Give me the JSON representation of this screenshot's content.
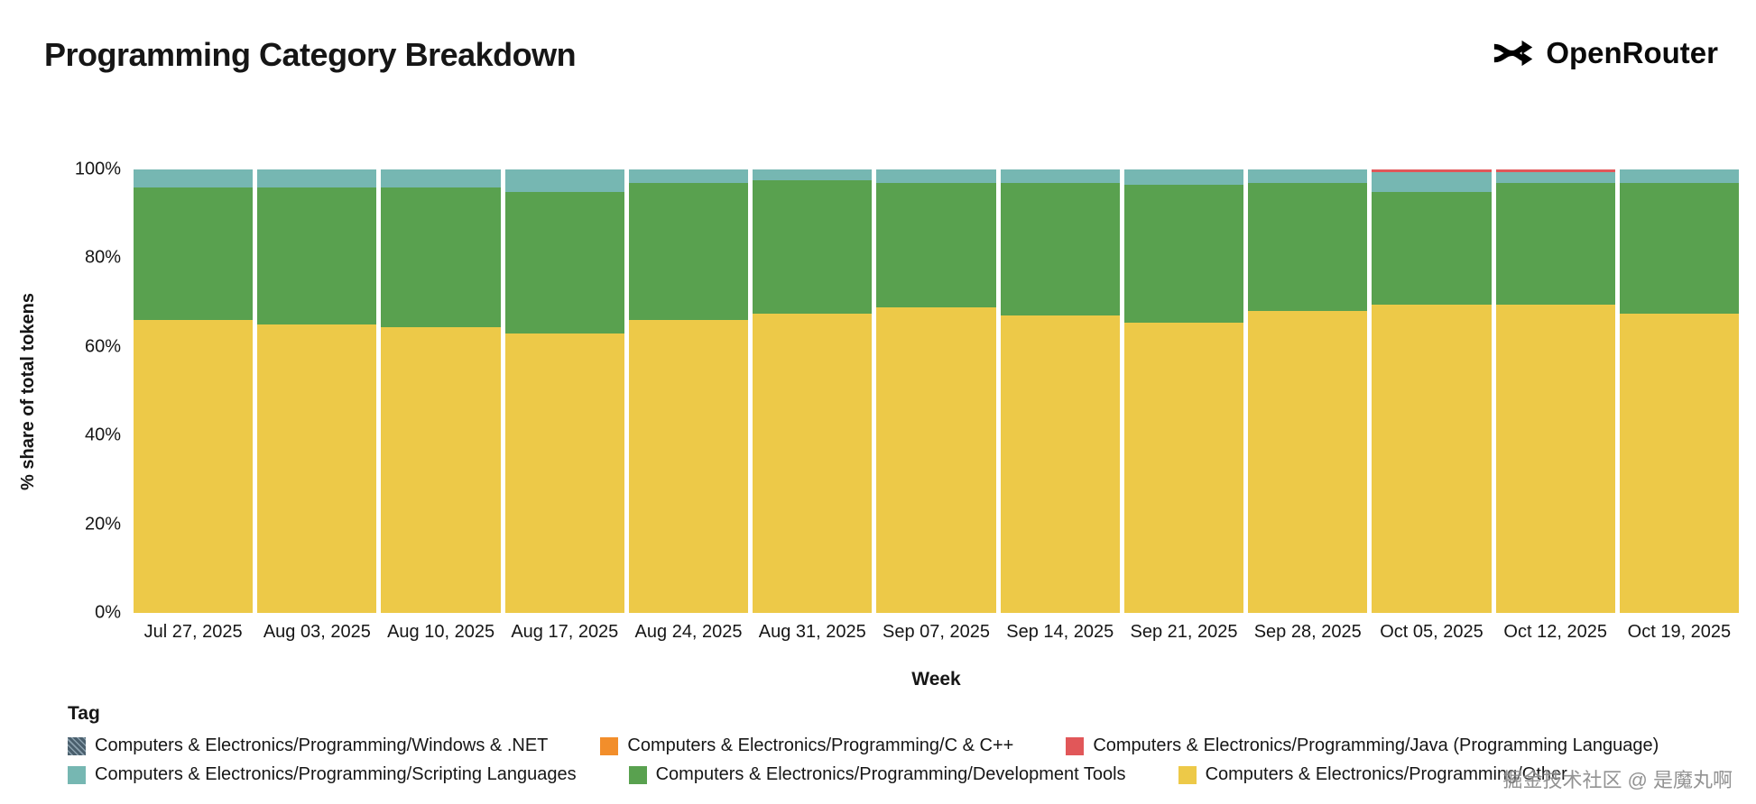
{
  "header": {
    "title": "Programming Category Breakdown",
    "brand": "OpenRouter"
  },
  "chart_data": {
    "type": "bar",
    "stacked": true,
    "percent": true,
    "title": "Programming Category Breakdown",
    "xlabel": "Week",
    "ylabel": "% share of total tokens",
    "ylim": [
      0,
      100
    ],
    "yticks": [
      0,
      20,
      40,
      60,
      80,
      100
    ],
    "grid": false,
    "legend_position": "bottom",
    "categories": [
      "Jul 27, 2025",
      "Aug 03, 2025",
      "Aug 10, 2025",
      "Aug 17, 2025",
      "Aug 24, 2025",
      "Aug 31, 2025",
      "Sep 07, 2025",
      "Sep 14, 2025",
      "Sep 21, 2025",
      "Sep 28, 2025",
      "Oct 05, 2025",
      "Oct 12, 2025",
      "Oct 19, 2025"
    ],
    "series": [
      {
        "name": "Computers & Electronics/Programming/Other",
        "color": "#edc948",
        "values": [
          66,
          65,
          64.5,
          63,
          66,
          67.5,
          69,
          67,
          65.5,
          68,
          69.5,
          69.5,
          67.5
        ]
      },
      {
        "name": "Computers & Electronics/Programming/Development Tools",
        "color": "#59a14f",
        "values": [
          30,
          31,
          31.5,
          32,
          31,
          30,
          28,
          30,
          31,
          29,
          25.5,
          27.5,
          29.5
        ]
      },
      {
        "name": "Computers & Electronics/Programming/Scripting Languages",
        "color": "#76b7b2",
        "values": [
          4,
          4,
          4,
          5,
          3,
          2.5,
          3,
          3,
          3.5,
          3,
          4.3,
          2.3,
          3
        ]
      },
      {
        "name": "Computers & Electronics/Programming/Java (Programming Language)",
        "color": "#e15759",
        "values": [
          0,
          0,
          0,
          0,
          0,
          0,
          0,
          0,
          0,
          0,
          0.7,
          0.7,
          0
        ]
      },
      {
        "name": "Computers & Electronics/Programming/C & C++",
        "color": "#f28e2b",
        "values": [
          0,
          0,
          0,
          0,
          0,
          0,
          0,
          0,
          0,
          0,
          0,
          0,
          0
        ]
      },
      {
        "name": "Computers & Electronics/Programming/Windows & .NET",
        "color": "#4a5f6d",
        "hatched": true,
        "values": [
          0,
          0,
          0,
          0,
          0,
          0,
          0,
          0,
          0,
          0,
          0,
          0,
          0
        ]
      }
    ]
  },
  "legend": {
    "title": "Tag",
    "rows": [
      [
        5,
        4,
        3
      ],
      [
        2,
        1,
        0
      ]
    ]
  },
  "watermark": {
    "text": "掘金技术社区 @ 是魔丸啊"
  }
}
